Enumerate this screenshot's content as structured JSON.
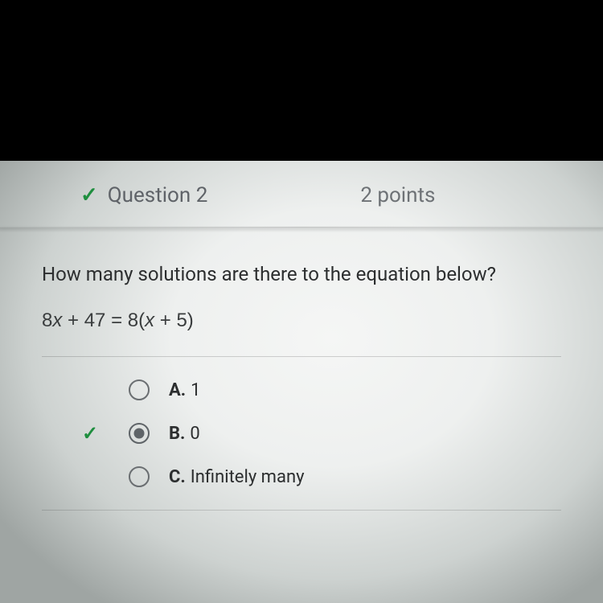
{
  "header": {
    "checkmark": "✓",
    "title": "Question 2",
    "points": "2 points"
  },
  "question": {
    "prompt": "How many solutions are there to the equation below?",
    "equation_left_a": "8",
    "equation_left_x": "x",
    "equation_left_b": " + 47 = 8(",
    "equation_right_x": "x",
    "equation_right_b": " + 5)"
  },
  "options": [
    {
      "letter": "A.",
      "text": "1",
      "selected": false,
      "correct_marker": ""
    },
    {
      "letter": "B.",
      "text": "0",
      "selected": true,
      "correct_marker": "✓"
    },
    {
      "letter": "C.",
      "text": "Infinitely many",
      "selected": false,
      "correct_marker": ""
    }
  ],
  "colors": {
    "correct_green": "#1e8e3e",
    "text_dark": "#2c2e2f",
    "text_muted": "#5f6368",
    "radio_border": "#6a6e71",
    "background_light": "#eef0ef"
  }
}
